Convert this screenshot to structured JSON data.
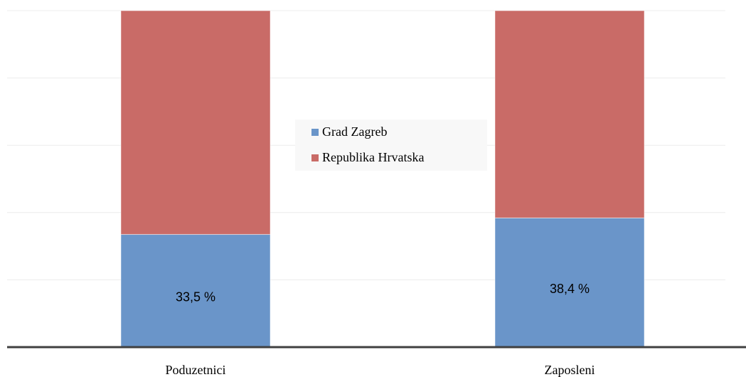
{
  "chart_data": {
    "type": "stacked_bar",
    "categories": [
      "Poduzetnici",
      "Zaposleni"
    ],
    "series": [
      {
        "name": "Grad Zagreb",
        "color": "#6a95c9",
        "values": [
          33.5,
          38.4
        ],
        "value_labels": [
          "33,5 %",
          "38,4 %"
        ]
      },
      {
        "name": "Republika Hrvatska",
        "color": "#c96b67",
        "values": [
          66.5,
          61.6
        ]
      }
    ],
    "ylim": [
      0,
      100
    ],
    "yticks": [
      0,
      20,
      40,
      60,
      80,
      100
    ],
    "grid": true,
    "legend": "center"
  }
}
